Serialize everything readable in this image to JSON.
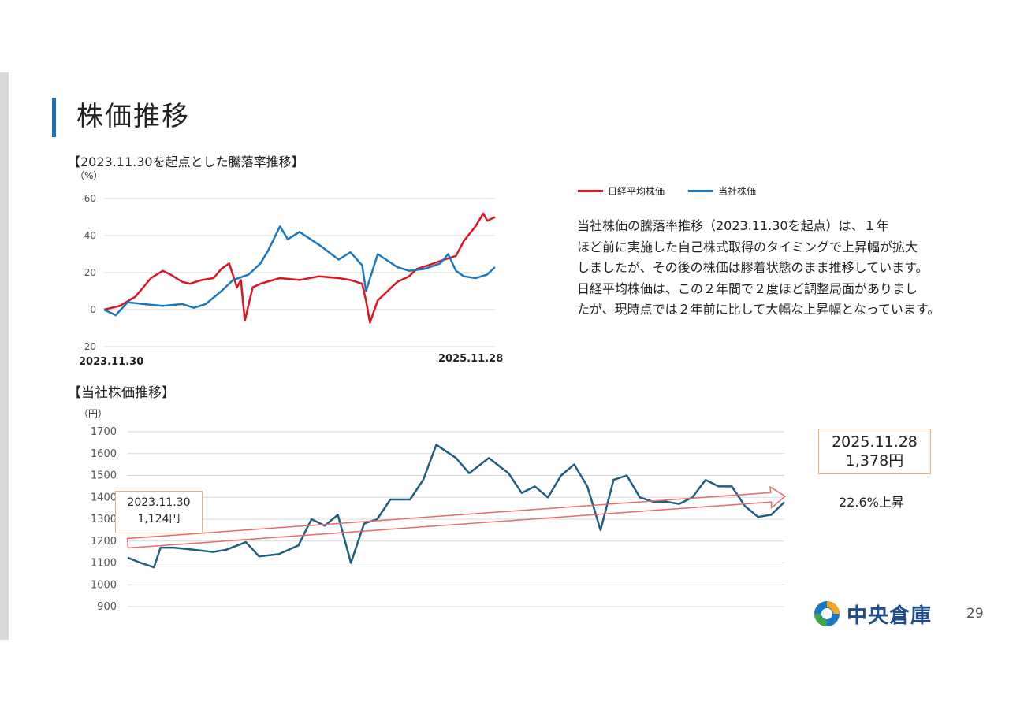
{
  "page": {
    "title": "株価推移",
    "page_number": "29",
    "logo_text": "中央倉庫"
  },
  "section1": {
    "heading": "【2023.11.30を起点とした騰落率推移】",
    "unit": "（%）",
    "start_label": "2023.11.30",
    "end_label": "2025.11.28"
  },
  "section2": {
    "heading": "【当社株価推移】",
    "unit": "（円）"
  },
  "legend": {
    "nikkei": "日経平均株価",
    "company": "当社株価"
  },
  "description": [
    "当社株価の騰落率推移（2023.11.30を起点）は、１年",
    "ほど前に実施した自己株式取得のタイミングで上昇幅が拡大",
    "しましたが、その後の株価は膠着状態のまま推移しています。",
    "日経平均株価は、この２年間で２度ほど調整局面がありまし",
    "たが、現時点では２年前に比して大幅な上昇幅となっています。"
  ],
  "callouts": {
    "start_date": "2023.11.30",
    "start_price": "1,124円",
    "end_date": "2025.11.28",
    "end_price": "1,378円",
    "rise": "22.6%上昇"
  },
  "colors": {
    "nikkei": "#e0141e",
    "company": "#1a78c2",
    "price_line": "#1f5f80",
    "title_accent": "#1f6fb5",
    "arrow": "#e86a6a"
  },
  "chart_data": [
    {
      "type": "line",
      "title": "【2023.11.30を起点とした騰落率推移】",
      "ylabel": "（%）",
      "ylim": [
        -20,
        60
      ],
      "yticks": [
        -20,
        0,
        20,
        40,
        60
      ],
      "x_range": [
        "2023.11.30",
        "2025.11.28"
      ],
      "legend_position": "top-right",
      "grid": true,
      "series": [
        {
          "name": "日経平均株価",
          "color": "#e0141e",
          "x": [
            0,
            0.04,
            0.08,
            0.1,
            0.12,
            0.15,
            0.17,
            0.2,
            0.22,
            0.25,
            0.28,
            0.3,
            0.32,
            0.34,
            0.35,
            0.36,
            0.38,
            0.4,
            0.45,
            0.5,
            0.55,
            0.6,
            0.63,
            0.66,
            0.67,
            0.68,
            0.7,
            0.75,
            0.78,
            0.8,
            0.83,
            0.87,
            0.9,
            0.92,
            0.95,
            0.97,
            0.98,
            1.0
          ],
          "values": [
            0,
            2,
            7,
            12,
            17,
            21,
            19,
            15,
            14,
            16,
            17,
            22,
            25,
            12,
            16,
            -6,
            12,
            14,
            17,
            16,
            18,
            17,
            16,
            14,
            5,
            -7,
            5,
            15,
            18,
            22,
            24,
            27,
            29,
            37,
            45,
            52,
            48,
            50
          ]
        },
        {
          "name": "当社株価",
          "color": "#1a78c2",
          "x": [
            0,
            0.03,
            0.06,
            0.1,
            0.15,
            0.2,
            0.23,
            0.26,
            0.3,
            0.33,
            0.37,
            0.4,
            0.42,
            0.45,
            0.47,
            0.5,
            0.55,
            0.6,
            0.63,
            0.66,
            0.67,
            0.7,
            0.75,
            0.78,
            0.82,
            0.86,
            0.88,
            0.9,
            0.92,
            0.95,
            0.98,
            1.0
          ],
          "values": [
            0,
            -3,
            4,
            3,
            2,
            3,
            1,
            3,
            10,
            16,
            19,
            25,
            32,
            45,
            38,
            42,
            35,
            27,
            31,
            24,
            10,
            30,
            23,
            21,
            22,
            25,
            30,
            21,
            18,
            17,
            19,
            23
          ]
        }
      ]
    },
    {
      "type": "line",
      "title": "【当社株価推移】",
      "ylabel": "（円）",
      "ylim": [
        900,
        1700
      ],
      "yticks": [
        900,
        1000,
        1100,
        1200,
        1300,
        1400,
        1500,
        1600,
        1700
      ],
      "grid": true,
      "series": [
        {
          "name": "当社株価",
          "color": "#1f5f80",
          "x": [
            0,
            0.02,
            0.04,
            0.05,
            0.07,
            0.1,
            0.13,
            0.15,
            0.18,
            0.2,
            0.23,
            0.26,
            0.28,
            0.3,
            0.32,
            0.34,
            0.36,
            0.38,
            0.4,
            0.43,
            0.45,
            0.47,
            0.5,
            0.52,
            0.55,
            0.58,
            0.6,
            0.62,
            0.64,
            0.66,
            0.68,
            0.7,
            0.72,
            0.74,
            0.76,
            0.78,
            0.8,
            0.82,
            0.84,
            0.86,
            0.88,
            0.9,
            0.92,
            0.94,
            0.96,
            0.98,
            1.0
          ],
          "values": [
            1124,
            1100,
            1080,
            1170,
            1170,
            1160,
            1150,
            1160,
            1195,
            1130,
            1140,
            1180,
            1300,
            1270,
            1320,
            1100,
            1280,
            1300,
            1390,
            1390,
            1480,
            1640,
            1580,
            1510,
            1580,
            1510,
            1420,
            1450,
            1400,
            1500,
            1550,
            1450,
            1250,
            1480,
            1500,
            1400,
            1380,
            1380,
            1370,
            1400,
            1480,
            1450,
            1450,
            1360,
            1310,
            1320,
            1378
          ]
        }
      ]
    }
  ]
}
